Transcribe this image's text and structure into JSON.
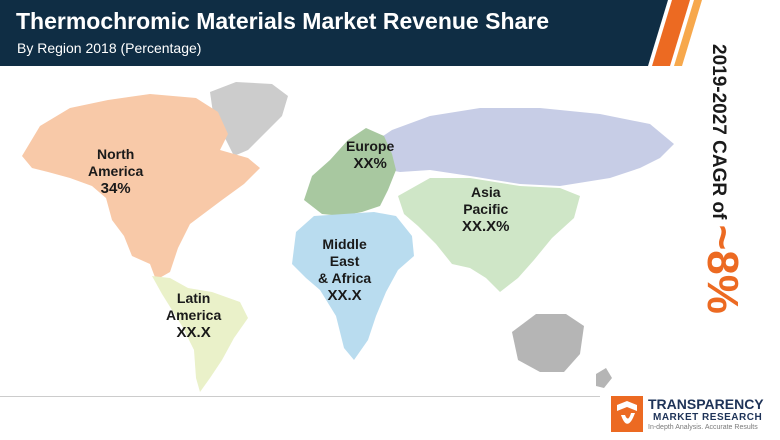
{
  "header": {
    "title": "Thermochromic Materials Market Revenue  Share",
    "subtitle": "By Region 2018 (Percentage)"
  },
  "regions": [
    {
      "name_lines": [
        "North",
        "America"
      ],
      "value": "34%"
    },
    {
      "name_lines": [
        "Europe"
      ],
      "value": "XX%"
    },
    {
      "name_lines": [
        "Asia",
        "Pacific"
      ],
      "value": "XX.X%"
    },
    {
      "name_lines": [
        "Middle",
        "East",
        "& Africa"
      ],
      "value": "XX.X"
    },
    {
      "name_lines": [
        "Latin",
        "America"
      ],
      "value": "XX.X"
    }
  ],
  "cagr": {
    "label": "2019-2027 CAGR of ",
    "value": "~8%"
  },
  "logo": {
    "name": "TRANSPARENCY",
    "sub": "MARKET RESEARCH",
    "tagline": "In-depth Analysis. Accurate Results"
  },
  "colors": {
    "header_bg": "#0f2d44",
    "accent_orange": "#ec6a22",
    "north_america": "#f8c9a8",
    "europe": "#a8c8a0",
    "asia_pacific": "#cfe6c7",
    "russia": "#c7cde6",
    "middle_east_africa": "#b9dcef",
    "latin_america": "#eaf1c9",
    "greenland": "#cccccc",
    "oceania": "#b5b5b5"
  }
}
